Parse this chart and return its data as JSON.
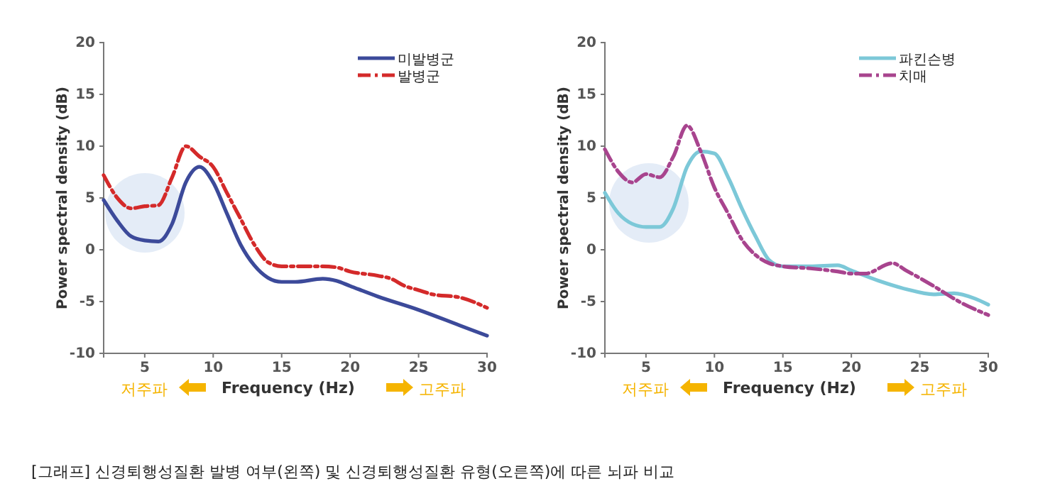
{
  "chart_data": [
    {
      "type": "line",
      "xlabel": "Frequency (Hz)",
      "ylabel": "Power spectral density (dB)",
      "xlim": [
        2,
        30
      ],
      "xticks": [
        5,
        10,
        15,
        20,
        25,
        30
      ],
      "ylim": [
        -10,
        20
      ],
      "yticks": [
        -10,
        -5,
        0,
        5,
        10,
        15,
        20
      ],
      "legend": "top right",
      "grid": false,
      "annotations": [
        "저주파",
        "고주파"
      ],
      "series": [
        {
          "name": "미발병군",
          "color": "#3c4a9a",
          "line_style": "solid",
          "x": [
            2,
            3,
            4,
            5,
            6,
            7,
            8,
            9,
            10,
            11,
            12,
            13,
            14,
            15,
            16,
            18,
            19,
            20,
            22,
            25,
            28,
            30
          ],
          "values": [
            4.8,
            2.8,
            1.3,
            0.9,
            0.8,
            2.5,
            6.5,
            8.0,
            6.5,
            3.5,
            0.5,
            -1.5,
            -2.7,
            -3.1,
            -3.1,
            -2.8,
            -3.0,
            -3.5,
            -4.5,
            -5.8,
            -7.3,
            -8.3
          ]
        },
        {
          "name": "발병군",
          "color": "#d42a2a",
          "line_style": "dashed",
          "x": [
            2,
            3,
            4,
            5,
            6,
            7,
            8,
            9,
            10,
            11,
            12,
            13,
            14,
            15,
            16,
            18,
            19,
            20,
            22,
            23,
            24,
            25,
            26,
            28,
            30
          ],
          "values": [
            7.2,
            5,
            4,
            4.2,
            4.3,
            7,
            10,
            9,
            8,
            5.5,
            3,
            0.5,
            -1.2,
            -1.6,
            -1.6,
            -1.6,
            -1.7,
            -2.1,
            -2.5,
            -2.8,
            -3.5,
            -3.9,
            -4.3,
            -4.6,
            -5.6
          ]
        }
      ]
    },
    {
      "type": "line",
      "xlabel": "Frequency (Hz)",
      "ylabel": "Power spectral density (dB)",
      "xlim": [
        2,
        30
      ],
      "xticks": [
        5,
        10,
        15,
        20,
        25,
        30
      ],
      "ylim": [
        -10,
        20
      ],
      "yticks": [
        -10,
        -5,
        0,
        5,
        10,
        15,
        20
      ],
      "legend": "top right",
      "grid": false,
      "annotations": [
        "저주파",
        "고주파",
        "[그래프] 신경퇴행성질환 발병 여부(왼쪽) 및 신경퇴행성질환 유형(오른쪽)에 따른 뇌파 비교"
      ],
      "series": [
        {
          "name": "파킨슨병",
          "color": "#7cc8d8",
          "line_style": "solid",
          "x": [
            2,
            3,
            4,
            5,
            6,
            7,
            8,
            9,
            10,
            11,
            12,
            13,
            14,
            15,
            17,
            19,
            20,
            22,
            24,
            26,
            27.5,
            29,
            30
          ],
          "values": [
            5.5,
            3.5,
            2.5,
            2.2,
            2.2,
            4,
            8,
            9.5,
            9.3,
            7,
            4,
            1.3,
            -1,
            -1.6,
            -1.6,
            -1.5,
            -2,
            -3,
            -3.8,
            -4.3,
            -4.2,
            -4.7,
            -5.3
          ]
        },
        {
          "name": "치매",
          "color": "#a8448e",
          "line_style": "dashed",
          "x": [
            2,
            3,
            4,
            5,
            6,
            7,
            8,
            9,
            10,
            11,
            12,
            13,
            14,
            15,
            17,
            19,
            20,
            21,
            23,
            24,
            26,
            28,
            30
          ],
          "values": [
            9.7,
            7.5,
            6.5,
            7.3,
            7,
            9,
            12,
            9.5,
            6,
            3.5,
            1,
            -0.5,
            -1.3,
            -1.6,
            -1.8,
            -2.1,
            -2.3,
            -2.3,
            -1.3,
            -2,
            -3.5,
            -5.1,
            -6.3
          ]
        }
      ]
    }
  ]
}
